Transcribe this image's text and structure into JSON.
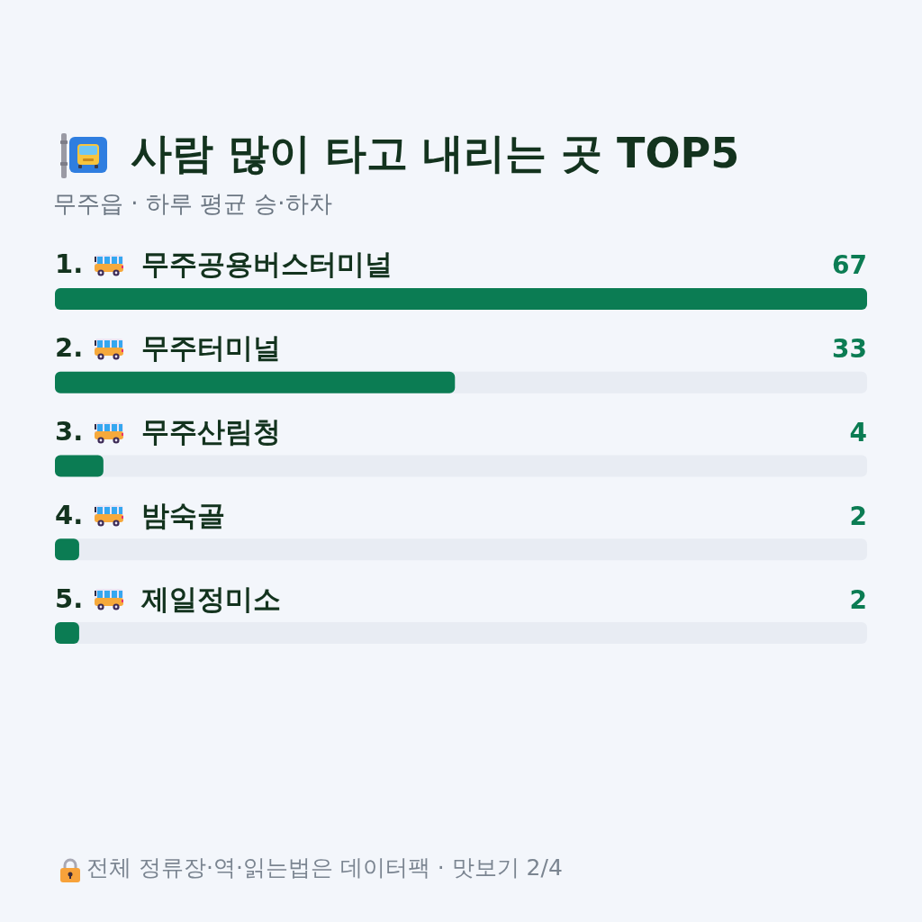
{
  "chart_data": {
    "type": "bar",
    "orientation": "horizontal",
    "title": "사람 많이 타고 내리는 곳 TOP5",
    "subtitle": "무주읍 · 하루 평균 승·하차",
    "categories": [
      "1. 무주공용버스터미널",
      "2. 무주터미널",
      "3. 무주산림청",
      "4. 밤숙골",
      "5. 제일정미소"
    ],
    "values": [
      67,
      33,
      4,
      2,
      2
    ],
    "color": "#0b7c53",
    "xlim": [
      0,
      67
    ],
    "data_labels": true,
    "tick_labels": "y",
    "annotations": [
      "전체 정류장·역·읽는법은 데이터팩 · 맛보기 2/4"
    ]
  }
}
